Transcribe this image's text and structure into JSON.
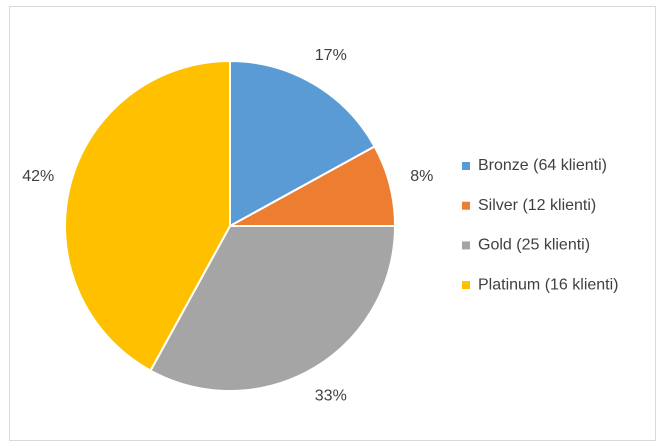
{
  "chart_data": {
    "type": "pie",
    "categories": [
      "Bronze (64 klienti)",
      "Silver (12 klienti)",
      "Gold (25 klienti)",
      "Platinum (16 klienti)"
    ],
    "values": [
      17,
      8,
      33,
      42
    ],
    "value_labels": [
      "17%",
      "8%",
      "33%",
      "42%"
    ],
    "colors": [
      "#5b9bd5",
      "#ed7d31",
      "#a5a5a5",
      "#ffc000"
    ],
    "legend": "right"
  }
}
